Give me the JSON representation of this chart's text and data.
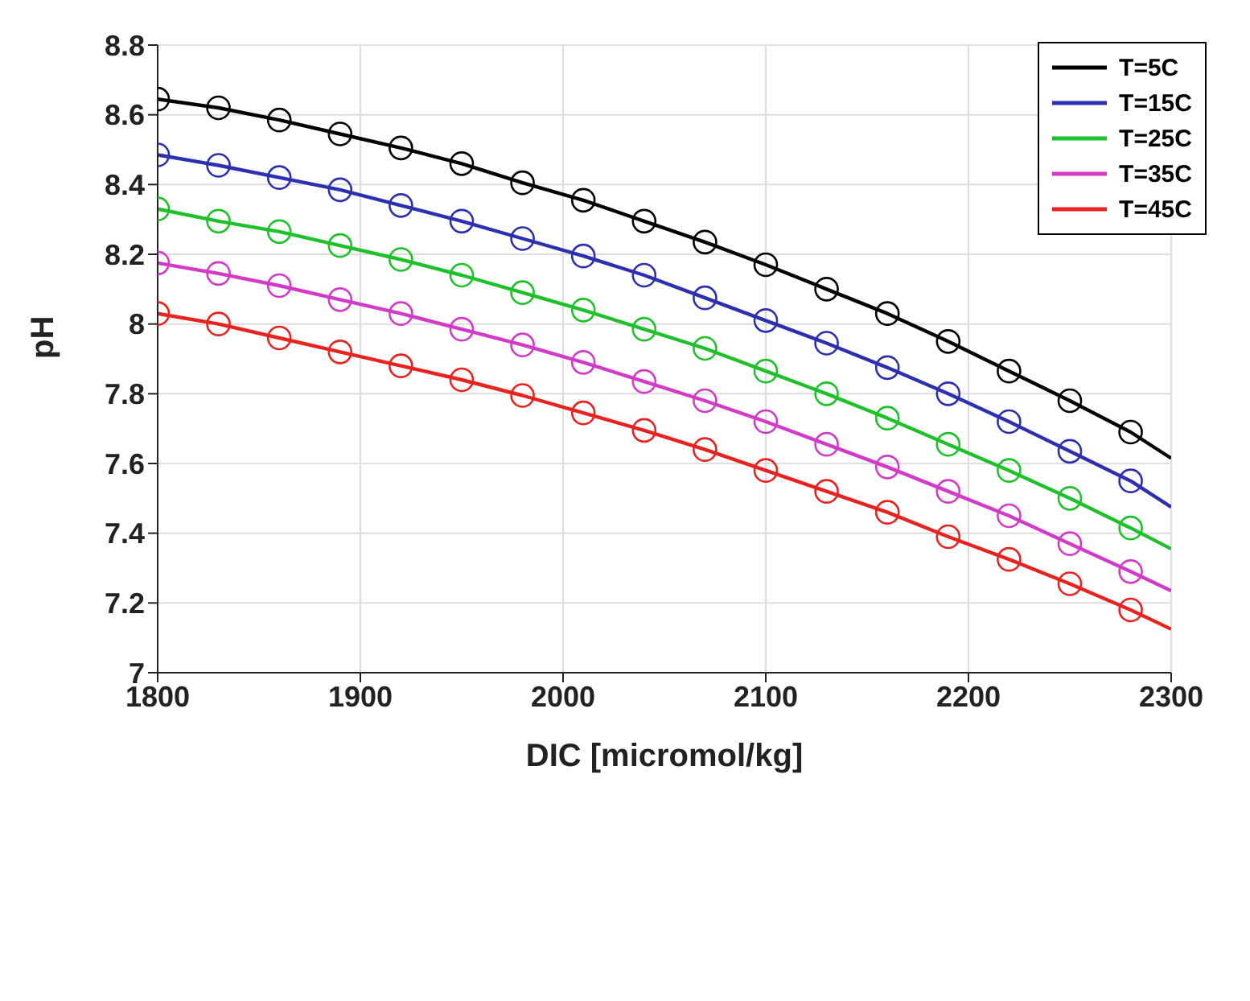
{
  "chart_data": {
    "type": "line",
    "xlabel": "DIC [micromol/kg]",
    "ylabel": "pH",
    "x": [
      1800,
      1830,
      1860,
      1890,
      1920,
      1950,
      1980,
      2010,
      2040,
      2070,
      2100,
      2130,
      2160,
      2190,
      2220,
      2250,
      2280
    ],
    "xlim": [
      1800,
      2300
    ],
    "xticks": [
      1800,
      1900,
      2000,
      2100,
      2200,
      2300
    ],
    "ylim": [
      7,
      8.8
    ],
    "yticks": [
      7,
      7.2,
      7.4,
      7.6,
      7.8,
      8,
      8.2,
      8.4,
      8.6,
      8.8
    ],
    "grid": true,
    "legend": "top right",
    "series": [
      {
        "name": "T=5C",
        "marker": "none",
        "color": "#000000",
        "x": [
          1800,
          1830,
          1860,
          1890,
          1920,
          1950,
          1980,
          2010,
          2040,
          2070,
          2100,
          2130,
          2160,
          2190,
          2220,
          2250,
          2280,
          2300
        ],
        "values": [
          8.645,
          8.62,
          8.585,
          8.545,
          8.505,
          8.46,
          8.405,
          8.355,
          8.295,
          8.235,
          8.17,
          8.1,
          8.03,
          7.95,
          7.865,
          7.78,
          7.69,
          7.615
        ]
      },
      {
        "name": "T=15C",
        "marker": "none",
        "color": "#2b2fb0",
        "x": [
          1800,
          1830,
          1860,
          1890,
          1920,
          1950,
          1980,
          2010,
          2040,
          2070,
          2100,
          2130,
          2160,
          2190,
          2220,
          2250,
          2280,
          2300
        ],
        "values": [
          8.485,
          8.455,
          8.42,
          8.385,
          8.34,
          8.295,
          8.245,
          8.195,
          8.14,
          8.075,
          8.01,
          7.945,
          7.875,
          7.8,
          7.72,
          7.635,
          7.55,
          7.475
        ]
      },
      {
        "name": "T=25C",
        "marker": "none",
        "color": "#1fc12b",
        "x": [
          1800,
          1830,
          1860,
          1890,
          1920,
          1950,
          1980,
          2010,
          2040,
          2070,
          2100,
          2130,
          2160,
          2190,
          2220,
          2250,
          2280,
          2300
        ],
        "values": [
          8.33,
          8.295,
          8.265,
          8.225,
          8.185,
          8.14,
          8.09,
          8.04,
          7.985,
          7.93,
          7.865,
          7.8,
          7.73,
          7.655,
          7.58,
          7.5,
          7.415,
          7.355
        ]
      },
      {
        "name": "T=35C",
        "marker": "none",
        "color": "#d23bc8",
        "x": [
          1800,
          1830,
          1860,
          1890,
          1920,
          1950,
          1980,
          2010,
          2040,
          2070,
          2100,
          2130,
          2160,
          2190,
          2220,
          2250,
          2280,
          2300
        ],
        "values": [
          8.175,
          8.145,
          8.11,
          8.07,
          8.03,
          7.985,
          7.94,
          7.89,
          7.835,
          7.78,
          7.72,
          7.655,
          7.59,
          7.52,
          7.45,
          7.37,
          7.29,
          7.235
        ]
      },
      {
        "name": "T=45C",
        "marker": "none",
        "color": "#e8231f",
        "x": [
          1800,
          1830,
          1860,
          1890,
          1920,
          1950,
          1980,
          2010,
          2040,
          2070,
          2100,
          2130,
          2160,
          2190,
          2220,
          2250,
          2280,
          2300
        ],
        "values": [
          8.03,
          8.0,
          7.96,
          7.92,
          7.88,
          7.84,
          7.795,
          7.745,
          7.695,
          7.64,
          7.58,
          7.52,
          7.46,
          7.39,
          7.325,
          7.255,
          7.18,
          7.125
        ]
      },
      {
        "type": "scatter",
        "marker": "circle",
        "color": "#000000",
        "values": [
          8.645,
          8.62,
          8.585,
          8.545,
          8.505,
          8.46,
          8.405,
          8.355,
          8.295,
          8.235,
          8.17,
          8.1,
          8.03,
          7.95,
          7.865,
          7.78,
          7.69
        ]
      },
      {
        "type": "scatter",
        "marker": "circle",
        "color": "#2b2fb0",
        "values": [
          8.485,
          8.455,
          8.42,
          8.385,
          8.34,
          8.295,
          8.245,
          8.195,
          8.14,
          8.075,
          8.01,
          7.945,
          7.875,
          7.8,
          7.72,
          7.635,
          7.55
        ]
      },
      {
        "type": "scatter",
        "marker": "circle",
        "color": "#1fc12b",
        "values": [
          8.33,
          8.295,
          8.265,
          8.225,
          8.185,
          8.14,
          8.09,
          8.04,
          7.985,
          7.93,
          7.865,
          7.8,
          7.73,
          7.655,
          7.58,
          7.5,
          7.415
        ]
      },
      {
        "type": "scatter",
        "marker": "circle",
        "color": "#d23bc8",
        "values": [
          8.175,
          8.145,
          8.11,
          8.07,
          8.03,
          7.985,
          7.94,
          7.89,
          7.835,
          7.78,
          7.72,
          7.655,
          7.59,
          7.52,
          7.45,
          7.37,
          7.29
        ]
      },
      {
        "type": "scatter",
        "marker": "circle",
        "color": "#e8231f",
        "values": [
          8.03,
          8.0,
          7.96,
          7.92,
          7.88,
          7.84,
          7.795,
          7.745,
          7.695,
          7.64,
          7.58,
          7.52,
          7.46,
          7.39,
          7.325,
          7.255,
          7.18
        ]
      }
    ]
  }
}
